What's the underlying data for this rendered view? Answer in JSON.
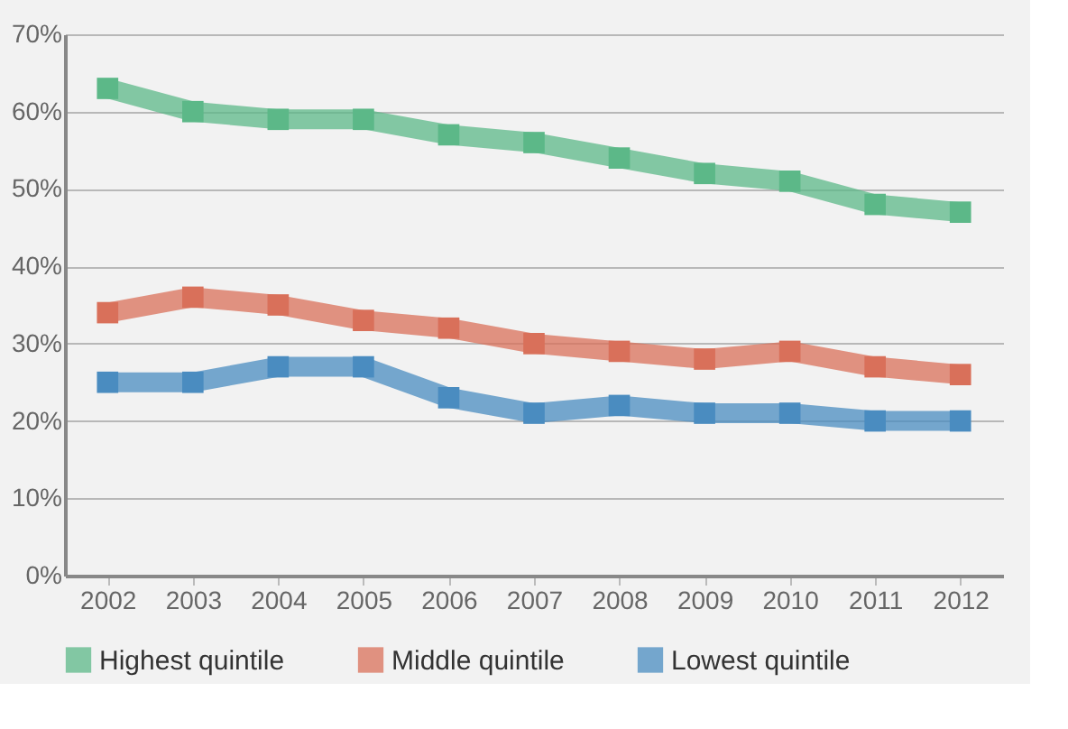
{
  "chart_data": {
    "type": "line",
    "categories": [
      "2002",
      "2003",
      "2004",
      "2005",
      "2006",
      "2007",
      "2008",
      "2009",
      "2010",
      "2011",
      "2012"
    ],
    "series": [
      {
        "name": "Highest quintile",
        "color": "#5cb888",
        "values": [
          63,
          60,
          59,
          59,
          57,
          56,
          54,
          52,
          51,
          48,
          47
        ]
      },
      {
        "name": "Middle quintile",
        "color": "#d9705a",
        "values": [
          34,
          36,
          35,
          33,
          32,
          30,
          29,
          28,
          29,
          27,
          26
        ]
      },
      {
        "name": "Lowest quintile",
        "color": "#4a8cc0",
        "values": [
          25,
          25,
          27,
          27,
          23,
          21,
          22,
          21,
          21,
          20,
          20
        ]
      }
    ],
    "ylim": [
      0,
      70
    ],
    "yticks": [
      {
        "value": 0,
        "label": "0%"
      },
      {
        "value": 10,
        "label": "10%"
      },
      {
        "value": 20,
        "label": "20%"
      },
      {
        "value": 30,
        "label": "30%"
      },
      {
        "value": 40,
        "label": "40%"
      },
      {
        "value": 50,
        "label": "50%"
      },
      {
        "value": 60,
        "label": "60%"
      },
      {
        "value": 70,
        "label": "70%"
      }
    ],
    "grid": "y",
    "legend": "bottom",
    "marker": "square",
    "line_style": "solid"
  }
}
